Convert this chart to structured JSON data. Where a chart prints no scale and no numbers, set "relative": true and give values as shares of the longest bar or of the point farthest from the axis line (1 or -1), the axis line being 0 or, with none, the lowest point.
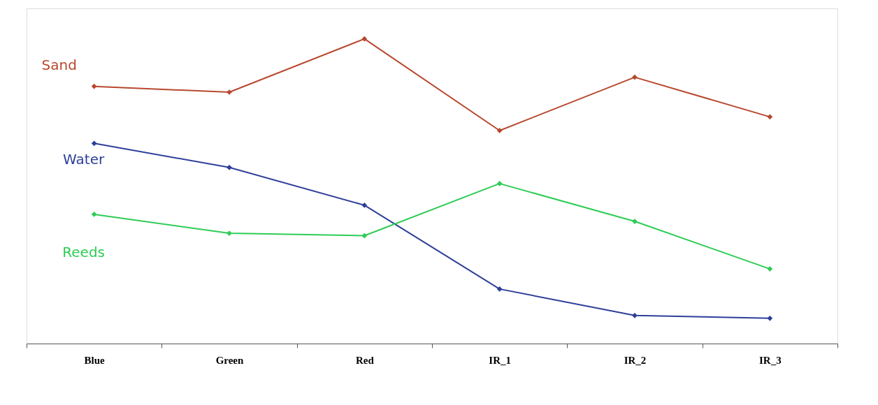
{
  "chart_data": {
    "type": "line",
    "relative": true,
    "categories": [
      "Blue",
      "Green",
      "Red",
      "IR_1",
      "IR_2",
      "IR_3"
    ],
    "series": [
      {
        "name": "Sand",
        "color": "#b8482e",
        "values": [
          0.844,
          0.825,
          1,
          0.699,
          0.874,
          0.744
        ]
      },
      {
        "name": "Water",
        "color": "#2e3f99",
        "values": [
          0.657,
          0.578,
          0.454,
          0.179,
          0.092,
          0.083
        ]
      },
      {
        "name": "Reeds",
        "color": "#2ecc55",
        "values": [
          0.424,
          0.362,
          0.354,
          0.525,
          0.401,
          0.245
        ]
      }
    ],
    "marker": "diamond",
    "line_style": "solid",
    "grid": false
  }
}
